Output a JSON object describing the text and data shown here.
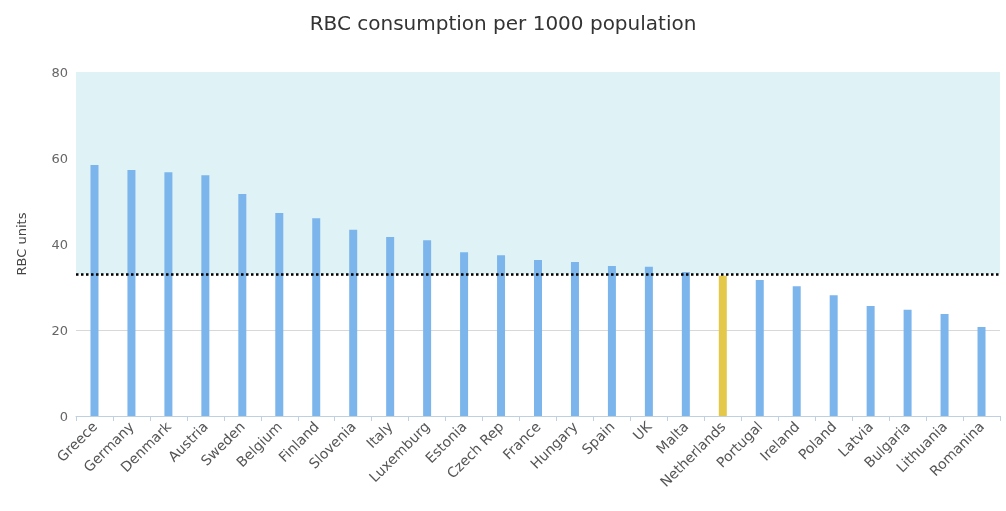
{
  "chart_data": {
    "type": "bar",
    "title": "RBC consumption per 1000 population",
    "ylabel": "RBC units",
    "categories": [
      "Greece",
      "Germany",
      "Denmark",
      "Austria",
      "Sweden",
      "Belgium",
      "Finland",
      "Slovenia",
      "Italy",
      "Luxemburg",
      "Estonia",
      "Czech Rep",
      "France",
      "Hungary",
      "Spain",
      "UK",
      "Malta",
      "Netherlands",
      "Portugal",
      "Ireland",
      "Poland",
      "Latvia",
      "Bulgaria",
      "Lithuania",
      "Romanina"
    ],
    "values": [
      58.4,
      57.2,
      56.7,
      56.0,
      51.6,
      47.2,
      46.0,
      43.3,
      41.6,
      40.9,
      38.1,
      37.4,
      36.3,
      35.8,
      34.9,
      34.7,
      33.5,
      32.6,
      31.6,
      30.2,
      28.1,
      25.6,
      24.7,
      23.7,
      20.7
    ],
    "colors": [
      "#7cb5ec",
      "#7cb5ec",
      "#7cb5ec",
      "#7cb5ec",
      "#7cb5ec",
      "#7cb5ec",
      "#7cb5ec",
      "#7cb5ec",
      "#7cb5ec",
      "#7cb5ec",
      "#7cb5ec",
      "#7cb5ec",
      "#7cb5ec",
      "#7cb5ec",
      "#7cb5ec",
      "#7cb5ec",
      "#7cb5ec",
      "#e4c84a",
      "#7cb5ec",
      "#7cb5ec",
      "#7cb5ec",
      "#7cb5ec",
      "#7cb5ec",
      "#7cb5ec",
      "#7cb5ec"
    ],
    "ylim": [
      0,
      80
    ],
    "yticks": [
      0,
      20,
      40,
      60,
      80
    ],
    "grid": "y",
    "ref_lines": [
      {
        "axis": "y",
        "value": 33,
        "color": "#000000",
        "line_style": "dotted"
      }
    ],
    "bands": [
      {
        "axis": "y",
        "from": 33,
        "to": 80,
        "color": "#dff2f6"
      }
    ]
  }
}
